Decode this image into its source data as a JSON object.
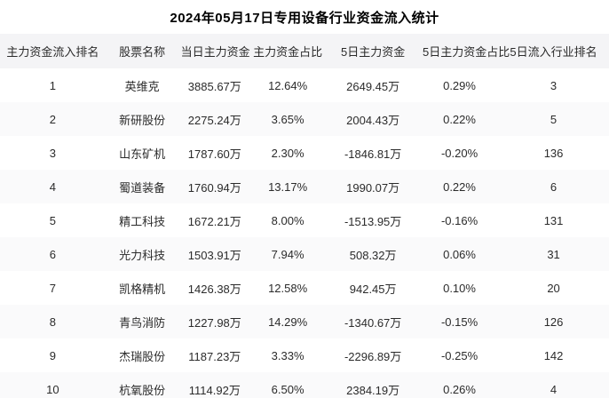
{
  "chart_data": {
    "type": "table",
    "title": "2024年05月17日专用设备行业资金流入统计",
    "columns": [
      "主力资金流入排名",
      "股票名称",
      "当日主力资金",
      "主力资金占比",
      "5日主力资金",
      "5日主力资金占比",
      "5日流入行业排名"
    ],
    "rows": [
      [
        "1",
        "英维克",
        "3885.67万",
        "12.64%",
        "2649.45万",
        "0.29%",
        "3"
      ],
      [
        "2",
        "新研股份",
        "2275.24万",
        "3.65%",
        "2004.43万",
        "0.22%",
        "5"
      ],
      [
        "3",
        "山东矿机",
        "1787.60万",
        "2.30%",
        "-1846.81万",
        "-0.20%",
        "136"
      ],
      [
        "4",
        "蜀道装备",
        "1760.94万",
        "13.17%",
        "1990.07万",
        "0.22%",
        "6"
      ],
      [
        "5",
        "精工科技",
        "1672.21万",
        "8.00%",
        "-1513.95万",
        "-0.16%",
        "131"
      ],
      [
        "6",
        "光力科技",
        "1503.91万",
        "7.94%",
        "508.32万",
        "0.06%",
        "31"
      ],
      [
        "7",
        "凯格精机",
        "1426.38万",
        "12.58%",
        "942.45万",
        "0.10%",
        "20"
      ],
      [
        "8",
        "青鸟消防",
        "1227.98万",
        "14.29%",
        "-1340.67万",
        "-0.15%",
        "126"
      ],
      [
        "9",
        "杰瑞股份",
        "1187.23万",
        "3.33%",
        "-2296.89万",
        "-0.25%",
        "142"
      ],
      [
        "10",
        "杭氧股份",
        "1114.92万",
        "6.50%",
        "2384.19万",
        "0.26%",
        "4"
      ]
    ],
    "layout": {
      "header_background": "#f4f4f6",
      "row_background_odd": "#ffffff",
      "row_background_even": "#fafafb",
      "text_color": "#2b2b2b",
      "title_color": "#000000"
    }
  }
}
